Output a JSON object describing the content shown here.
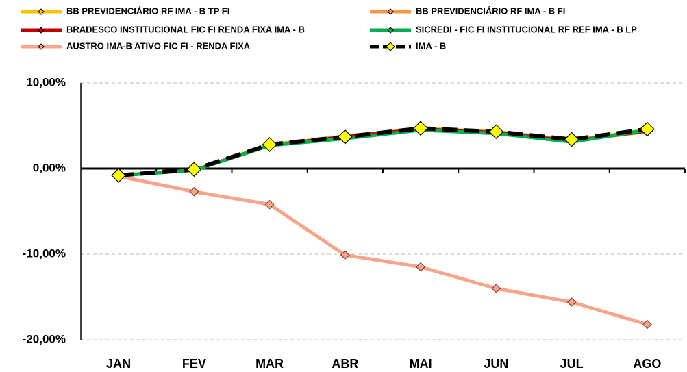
{
  "chart_data": {
    "type": "line",
    "categories": [
      "JAN",
      "FEV",
      "MAR",
      "ABR",
      "MAI",
      "JUN",
      "JUL",
      "AGO"
    ],
    "series": [
      {
        "name": "BB PREVIDENCIÁRIO RF IMA - B TP FI",
        "color": "#ffc000",
        "values": [
          -0.8,
          -0.2,
          2.8,
          3.7,
          4.7,
          4.3,
          3.3,
          4.5
        ]
      },
      {
        "name": "BB PREVIDENCIÁRIO RF IMA - B FI",
        "color": "#f79646",
        "values": [
          -0.8,
          -0.2,
          2.7,
          3.8,
          4.6,
          4.3,
          3.3,
          4.3
        ]
      },
      {
        "name": "BRADESCO INSTITUCIONAL FIC FI RENDA FIXA IMA - B",
        "color": "#c00000",
        "values": [
          -0.8,
          -0.2,
          2.7,
          3.7,
          4.6,
          4.2,
          3.2,
          4.4
        ]
      },
      {
        "name": "SICREDI - FIC FI INSTITUCIONAL RF REF IMA - B LP",
        "color": "#00b050",
        "values": [
          -0.8,
          -0.2,
          2.7,
          3.5,
          4.5,
          4.1,
          3.1,
          4.5
        ]
      },
      {
        "name": "AUSTRO IMA-B ATIVO FIC FI - RENDA FIXA",
        "color": "#f4a58a",
        "values": [
          -0.9,
          -2.7,
          -4.2,
          -10.1,
          -11.5,
          -14.0,
          -15.6,
          -18.2
        ]
      },
      {
        "name": "IMA - B",
        "color": "#000000",
        "marker_color": "#ffff00",
        "dashed": true,
        "values": [
          -0.8,
          -0.1,
          2.8,
          3.7,
          4.7,
          4.3,
          3.4,
          4.6
        ]
      }
    ],
    "ylim": [
      -20,
      10
    ],
    "yticks": [
      {
        "value": -20,
        "label": "-20,00%"
      },
      {
        "value": -10,
        "label": "-10,00%"
      },
      {
        "value": 0,
        "label": "0,00%"
      },
      {
        "value": 10,
        "label": "10,00%"
      }
    ],
    "grid": true
  }
}
